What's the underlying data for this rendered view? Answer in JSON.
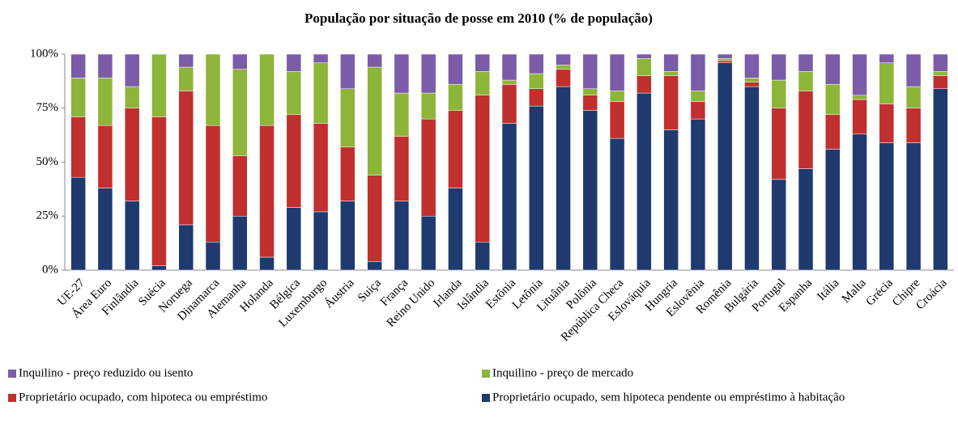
{
  "chart_data": {
    "type": "stacked_bar",
    "title": "População por situação de posse em 2010 (% de população)",
    "categories": [
      "UE-27",
      "Área Euro",
      "Finlândia",
      "Suécia",
      "Noruega",
      "Dinamarca",
      "Alemanha",
      "Holanda",
      "Bélgica",
      "Luxemburgo",
      "Áustria",
      "Suiça",
      "França",
      "Reino Unido",
      "Irlanda",
      "Islândia",
      "Estônia",
      "Letônia",
      "Lituânia",
      "Polônia",
      "República Checa",
      "Eslováquia",
      "Hungria",
      "Eslovênia",
      "Romênia",
      "Bulgária",
      "Portugal",
      "Espanha",
      "Itália",
      "Malta",
      "Grécia",
      "Chipre",
      "Croácia"
    ],
    "series": [
      {
        "name": "Proprietário ocupado, sem hipoteca pendente ou empréstimo à habitação",
        "color": "#1f3a6e",
        "values": [
          43,
          38,
          32,
          2,
          21,
          13,
          25,
          6,
          29,
          27,
          32,
          4,
          32,
          25,
          38,
          13,
          68,
          76,
          85,
          74,
          61,
          82,
          65,
          70,
          96,
          85,
          42,
          47,
          56,
          63,
          59,
          59,
          84
        ]
      },
      {
        "name": "Proprietário ocupado, com hipoteca ou empréstimo",
        "color": "#c0302e",
        "values": [
          28,
          29,
          43,
          69,
          62,
          54,
          28,
          61,
          43,
          41,
          25,
          40,
          30,
          45,
          36,
          68,
          18,
          8,
          8,
          7,
          17,
          8,
          25,
          8,
          1,
          2,
          33,
          36,
          16,
          16,
          18,
          16,
          6
        ]
      },
      {
        "name": "Inquilino - preço de mercado",
        "color": "#8db53a",
        "values": [
          18,
          22,
          10,
          29,
          11,
          33,
          40,
          33,
          20,
          28,
          27,
          50,
          20,
          12,
          12,
          11,
          2,
          7,
          2,
          3,
          5,
          8,
          2,
          5,
          1,
          2,
          13,
          9,
          14,
          2,
          19,
          10,
          2
        ]
      },
      {
        "name": "Inquilino - preço reduzido ou isento",
        "color": "#7a5ca8",
        "values": [
          11,
          11,
          15,
          0,
          6,
          0,
          7,
          0,
          8,
          4,
          16,
          6,
          18,
          18,
          14,
          8,
          12,
          9,
          5,
          16,
          17,
          2,
          8,
          17,
          2,
          11,
          12,
          8,
          14,
          19,
          4,
          15,
          8
        ]
      }
    ],
    "ylim": [
      0,
      100
    ],
    "yticks": [
      {
        "value": 0,
        "label": "0%"
      },
      {
        "value": 25,
        "label": "25%"
      },
      {
        "value": 50,
        "label": "50%"
      },
      {
        "value": 75,
        "label": "75%"
      },
      {
        "value": 100,
        "label": "100%"
      }
    ],
    "grid": false
  }
}
